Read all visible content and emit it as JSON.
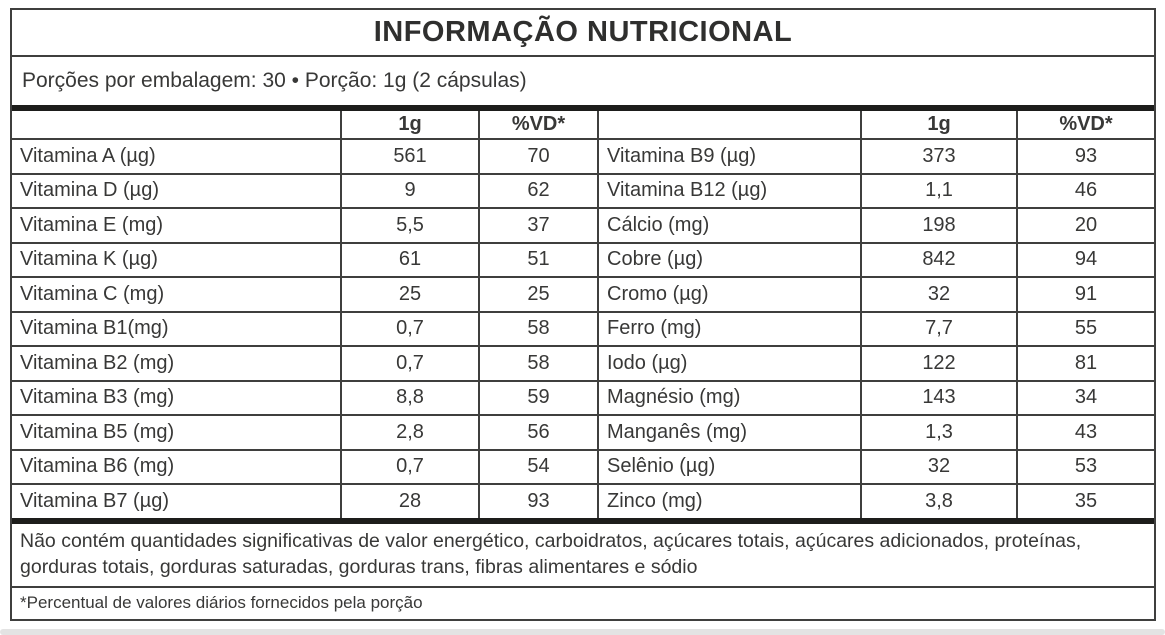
{
  "label": {
    "title": "INFORMAÇÃO NUTRICIONAL",
    "serving_line": "Porções por embalagem: 30 • Porção: 1g (2 cápsulas)",
    "amount_header": "1g",
    "dv_header": "%VD*",
    "rows": [
      {
        "left": {
          "label": "Vitamina A (µg)",
          "amount": "561",
          "vd": "70"
        },
        "right": {
          "label": "Vitamina B9 (µg)",
          "amount": "373",
          "vd": "93"
        }
      },
      {
        "left": {
          "label": "Vitamina D (µg)",
          "amount": "9",
          "vd": "62"
        },
        "right": {
          "label": "Vitamina B12 (µg)",
          "amount": "1,1",
          "vd": "46"
        }
      },
      {
        "left": {
          "label": "Vitamina E (mg)",
          "amount": "5,5",
          "vd": "37"
        },
        "right": {
          "label": "Cálcio (mg)",
          "amount": "198",
          "vd": "20"
        }
      },
      {
        "left": {
          "label": "Vitamina K (µg)",
          "amount": "61",
          "vd": "51"
        },
        "right": {
          "label": "Cobre (µg)",
          "amount": "842",
          "vd": "94"
        }
      },
      {
        "left": {
          "label": "Vitamina C (mg)",
          "amount": "25",
          "vd": "25"
        },
        "right": {
          "label": "Cromo (µg)",
          "amount": "32",
          "vd": "91"
        }
      },
      {
        "left": {
          "label": "Vitamina B1(mg)",
          "amount": "0,7",
          "vd": "58"
        },
        "right": {
          "label": "Ferro (mg)",
          "amount": "7,7",
          "vd": "55"
        }
      },
      {
        "left": {
          "label": "Vitamina B2 (mg)",
          "amount": "0,7",
          "vd": "58"
        },
        "right": {
          "label": "Iodo (µg)",
          "amount": "122",
          "vd": "81"
        }
      },
      {
        "left": {
          "label": "Vitamina B3 (mg)",
          "amount": "8,8",
          "vd": "59"
        },
        "right": {
          "label": "Magnésio (mg)",
          "amount": "143",
          "vd": "34"
        }
      },
      {
        "left": {
          "label": "Vitamina B5 (mg)",
          "amount": "2,8",
          "vd": "56"
        },
        "right": {
          "label": "Manganês (mg)",
          "amount": "1,3",
          "vd": "43"
        }
      },
      {
        "left": {
          "label": "Vitamina B6 (mg)",
          "amount": "0,7",
          "vd": "54"
        },
        "right": {
          "label": "Selênio (µg)",
          "amount": "32",
          "vd": "53"
        }
      },
      {
        "left": {
          "label": "Vitamina B7 (µg)",
          "amount": "28",
          "vd": "93"
        },
        "right": {
          "label": "Zinco (mg)",
          "amount": "3,8",
          "vd": "35"
        }
      }
    ],
    "no_significant_note": "Não contém quantidades significativas de valor energético, carboidratos, açúcares totais, açúcares adicionados, proteínas, gorduras totais, gorduras saturadas, gorduras trans, fibras alimentares e sódio",
    "footnote": "*Percentual de valores diários fornecidos pela porção"
  }
}
